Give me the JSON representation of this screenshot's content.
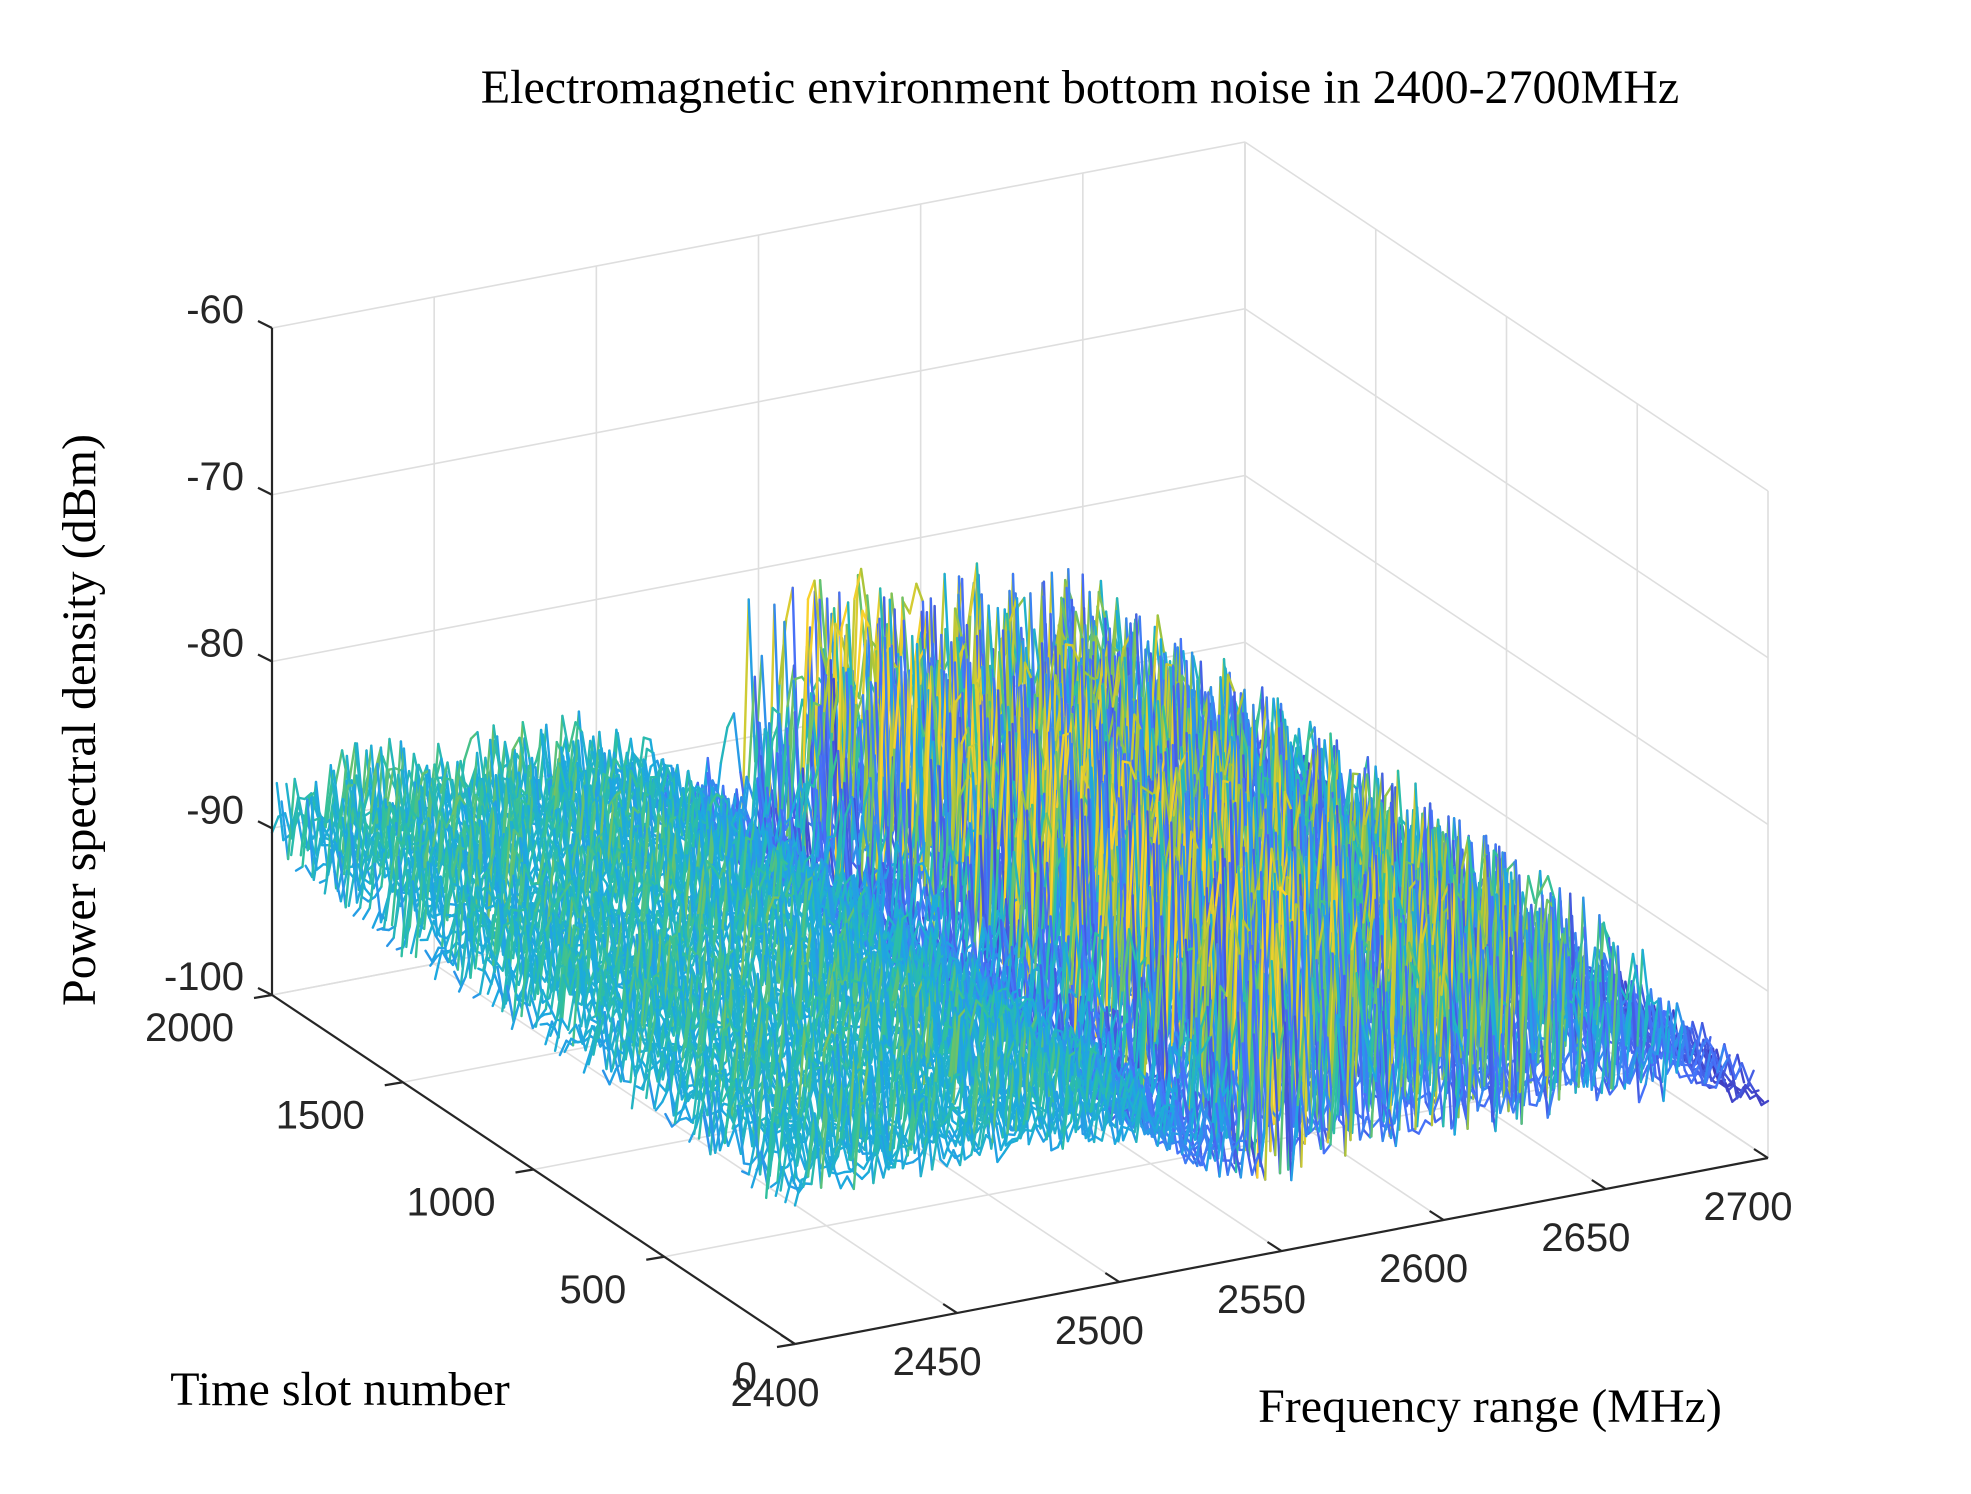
{
  "chart_data": {
    "type": "surface",
    "title": "Electromagnetic environment bottom noise in 2400-2700MHz",
    "xlabel": "Frequency range (MHz)",
    "ylabel": "Time slot number",
    "zlabel": "Power spectral density (dBm)",
    "xlim": [
      2400,
      2700
    ],
    "ylim": [
      0,
      2000
    ],
    "zlim": [
      -100,
      -60
    ],
    "x_ticks": [
      2400,
      2450,
      2500,
      2550,
      2600,
      2650,
      2700
    ],
    "y_ticks": [
      0,
      500,
      1000,
      1500,
      2000
    ],
    "z_ticks": [
      -60,
      -70,
      -80,
      -90,
      -100
    ],
    "x_tick_labels": [
      "2400",
      "2450",
      "2500",
      "2550",
      "2600",
      "2650",
      "2700"
    ],
    "y_tick_labels": [
      "0",
      "500",
      "1000",
      "1500",
      "2000"
    ],
    "z_tick_labels": [
      "-60",
      "-70",
      "-80",
      "-90",
      "-100"
    ],
    "colormap": [
      "#3e26a8",
      "#4772fa",
      "#1caadf",
      "#2ec09f",
      "#a3c43b",
      "#f9d12c"
    ],
    "frequency_profile": {
      "frequency_mhz": [
        2400,
        2410,
        2420,
        2430,
        2440,
        2450,
        2460,
        2470,
        2480,
        2490,
        2500,
        2510,
        2520,
        2530,
        2540,
        2550,
        2560,
        2570,
        2580,
        2590,
        2600,
        2610,
        2620,
        2630,
        2640,
        2650,
        2660,
        2670,
        2680,
        2690,
        2700
      ],
      "mean_psd_dbm": [
        -92,
        -91,
        -91,
        -91,
        -91.5,
        -91,
        -91,
        -91,
        -91.5,
        -91.5,
        -91.5,
        -91.5,
        -93,
        -95,
        -95,
        -96,
        -95,
        -95,
        -95,
        -95,
        -95,
        -95,
        -95,
        -95,
        -95,
        -95,
        -95,
        -95,
        -95,
        -96,
        -97
      ],
      "peak_psd_dbm": [
        -87,
        -86,
        -86,
        -85,
        -86,
        -86,
        -85,
        -85,
        -86,
        -86,
        -87,
        -88,
        -90,
        -91,
        -88,
        -78,
        -80,
        -80,
        -80,
        -81,
        -81,
        -81,
        -82,
        -82,
        -82,
        -84,
        -85,
        -87,
        -92,
        -93,
        -95
      ]
    }
  }
}
